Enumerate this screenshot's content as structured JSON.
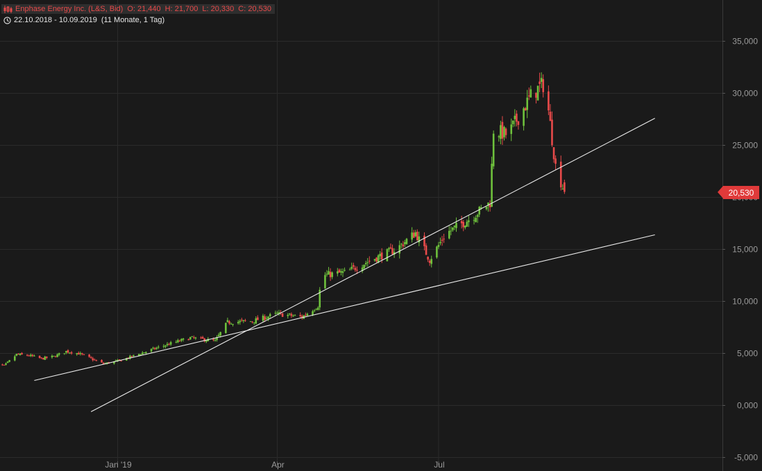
{
  "header": {
    "instrument": "Enphase Energy Inc. (L&S, Bid)",
    "open_label": "O:",
    "open": "21,440",
    "high_label": "H:",
    "high": "21,700",
    "low_label": "L:",
    "low": "20,330",
    "close_label": "C:",
    "close": "20,530",
    "period": "22.10.2018 - 10.09.2019",
    "period_detail": "(11 Monate, 1 Tag)",
    "chart_type_icon": "candlestick-icon",
    "period_icon": "clock-icon"
  },
  "colors": {
    "background": "#1a1a1a",
    "up": "#6ec13c",
    "down": "#e84a4a",
    "grid": "#2b2b2b",
    "axis_text": "#9a9a9a",
    "trendline": "#ececec",
    "price_tag": "#e03a3a"
  },
  "chart_data": {
    "type": "candlestick",
    "title": "Enphase Energy Inc. (L&S, Bid)",
    "ylim": [
      -5,
      37
    ],
    "y_ticks": [
      "35,000",
      "30,000",
      "25,000",
      "20,000",
      "15,000",
      "10,000",
      "5,000",
      "0,000",
      "-5,000"
    ],
    "y_tick_values": [
      35,
      30,
      25,
      20,
      15,
      10,
      5,
      0,
      -5
    ],
    "x_ticks": [
      "Jan '19",
      "Apr",
      "Jul"
    ],
    "x_tick_dates": [
      "2019-01-01",
      "2019-04-01",
      "2019-07-01"
    ],
    "x_range": [
      "2018-10-22",
      "2019-10-31"
    ],
    "last_price": "20,530",
    "grid": true,
    "close_series": [
      [
        "2018-10-22",
        4.0
      ],
      [
        "2018-10-29",
        3.8
      ],
      [
        "2018-11-05",
        4.9
      ],
      [
        "2018-11-12",
        4.8
      ],
      [
        "2018-11-19",
        4.5
      ],
      [
        "2018-11-26",
        4.7
      ],
      [
        "2018-12-03",
        5.2
      ],
      [
        "2018-12-10",
        5.0
      ],
      [
        "2018-12-17",
        4.5
      ],
      [
        "2018-12-24",
        4.0
      ],
      [
        "2019-01-02",
        4.3
      ],
      [
        "2019-01-14",
        5.0
      ],
      [
        "2019-01-28",
        5.8
      ],
      [
        "2019-02-11",
        6.5
      ],
      [
        "2019-02-25",
        6.2
      ],
      [
        "2019-03-04",
        8.0
      ],
      [
        "2019-03-18",
        8.1
      ],
      [
        "2019-04-01",
        8.8
      ],
      [
        "2019-04-15",
        8.5
      ],
      [
        "2019-04-24",
        9.6
      ],
      [
        "2019-04-26",
        12.5
      ],
      [
        "2019-05-10",
        12.8
      ],
      [
        "2019-05-24",
        14.0
      ],
      [
        "2019-06-07",
        15.0
      ],
      [
        "2019-06-18",
        16.6
      ],
      [
        "2019-06-26",
        14.0
      ],
      [
        "2019-07-05",
        16.5
      ],
      [
        "2019-07-19",
        18.0
      ],
      [
        "2019-07-30",
        19.5
      ],
      [
        "2019-08-01",
        26.5
      ],
      [
        "2019-08-09",
        26.0
      ],
      [
        "2019-08-16",
        28.0
      ],
      [
        "2019-08-23",
        30.0
      ],
      [
        "2019-08-30",
        31.0
      ],
      [
        "2019-09-05",
        23.0
      ],
      [
        "2019-09-10",
        20.53
      ]
    ],
    "trendlines": [
      {
        "from": [
          "2018-11-15",
          2.4
        ],
        "to": [
          "2019-10-31",
          16.4
        ]
      },
      {
        "from": [
          "2018-12-17",
          -0.6
        ],
        "to": [
          "2019-10-31",
          27.6
        ]
      }
    ]
  }
}
